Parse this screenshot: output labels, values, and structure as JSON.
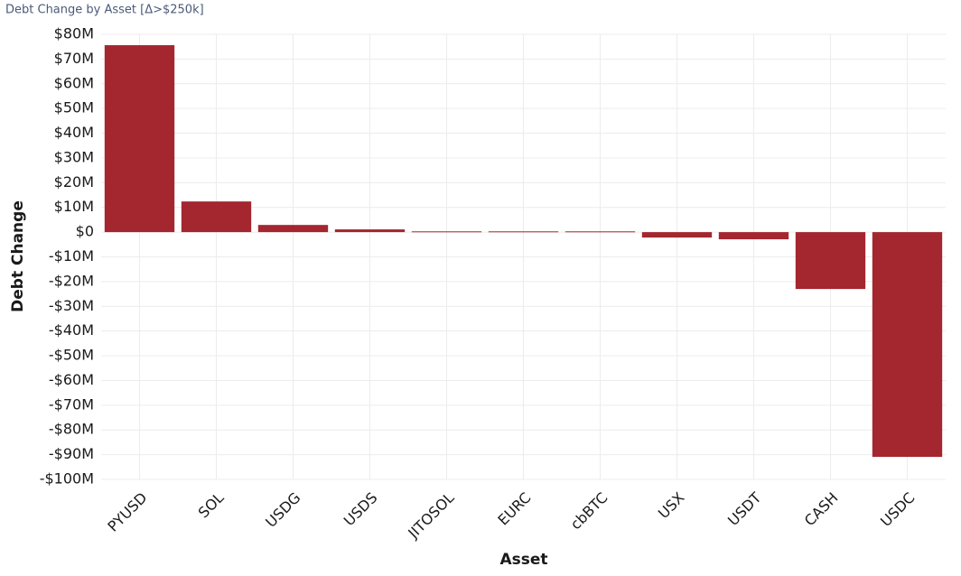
{
  "chart_data": {
    "type": "bar",
    "title": "Debt Change by Asset [Δ>$250k]",
    "x_label": "Asset",
    "y_label": "Debt Change",
    "categories": [
      "PYUSD",
      "SOL",
      "USDG",
      "USDS",
      "JITOSOL",
      "EURC",
      "cbBTC",
      "USX",
      "USDT",
      "CASH",
      "USDC"
    ],
    "values": [
      75.6,
      12.4,
      2.9,
      1.1,
      0.3,
      0.3,
      0.3,
      -2.2,
      -2.9,
      -23,
      -90.9
    ],
    "color": "#a4262f",
    "ylim": [
      -100,
      80
    ],
    "yticks": [
      {
        "value": -100,
        "label": "-$100M"
      },
      {
        "value": -90,
        "label": "-$90M"
      },
      {
        "value": -80,
        "label": "-$80M"
      },
      {
        "value": -70,
        "label": "-$70M"
      },
      {
        "value": -60,
        "label": "-$60M"
      },
      {
        "value": -50,
        "label": "-$50M"
      },
      {
        "value": -40,
        "label": "-$40M"
      },
      {
        "value": -30,
        "label": "-$30M"
      },
      {
        "value": -20,
        "label": "-$20M"
      },
      {
        "value": -10,
        "label": "-$10M"
      },
      {
        "value": 0,
        "label": "$0"
      },
      {
        "value": 10,
        "label": "$10M"
      },
      {
        "value": 20,
        "label": "$20M"
      },
      {
        "value": 30,
        "label": "$30M"
      },
      {
        "value": 40,
        "label": "$40M"
      },
      {
        "value": 50,
        "label": "$50M"
      },
      {
        "value": 60,
        "label": "$60M"
      },
      {
        "value": 70,
        "label": "$70M"
      },
      {
        "value": 80,
        "label": "$80M"
      }
    ],
    "grid": true
  }
}
